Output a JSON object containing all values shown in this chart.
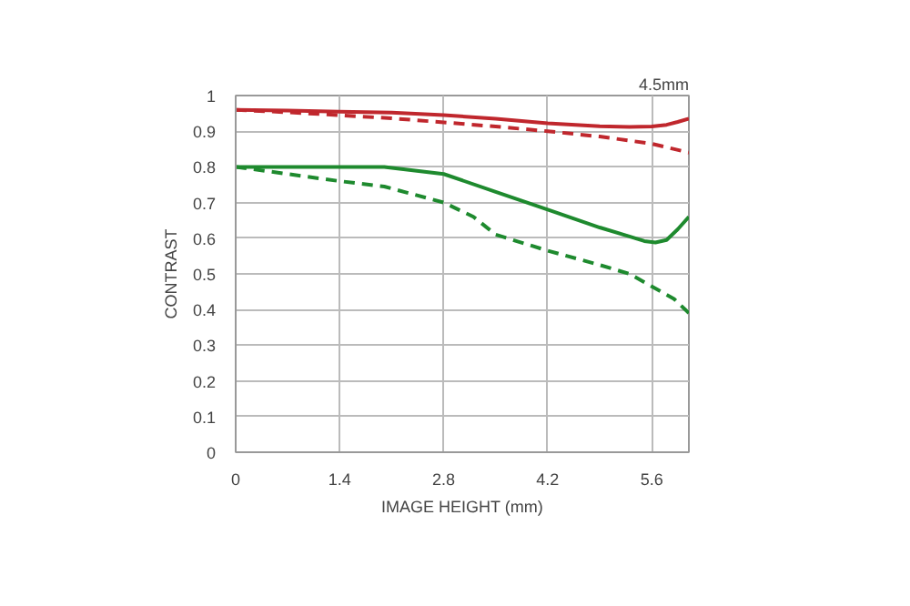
{
  "chart_data": {
    "type": "line",
    "xlabel": "IMAGE HEIGHT (mm)",
    "ylabel": "CONTRAST",
    "annotations": [
      "4.5mm"
    ],
    "xlim": [
      0,
      6.1
    ],
    "ylim": [
      0,
      1
    ],
    "xticks": [
      0,
      1.4,
      2.8,
      4.2,
      5.6
    ],
    "yticks": [
      0,
      0.1,
      0.2,
      0.3,
      0.4,
      0.5,
      0.6,
      0.7,
      0.8,
      0.9,
      1
    ],
    "grid": true,
    "series": [
      {
        "color": "#c0272d",
        "line_style": "solid",
        "x": [
          0,
          0.7,
          1.4,
          2.1,
          2.8,
          3.5,
          4.2,
          4.9,
          5.3,
          5.6,
          5.8,
          5.95,
          6.1
        ],
        "values": [
          0.96,
          0.958,
          0.955,
          0.952,
          0.945,
          0.935,
          0.922,
          0.914,
          0.912,
          0.913,
          0.918,
          0.926,
          0.935
        ]
      },
      {
        "color": "#c0272d",
        "line_style": "dashed",
        "x": [
          0,
          0.7,
          1.4,
          2.1,
          2.8,
          3.5,
          4.2,
          4.9,
          5.6,
          6.1
        ],
        "values": [
          0.96,
          0.953,
          0.945,
          0.936,
          0.925,
          0.913,
          0.9,
          0.885,
          0.865,
          0.84
        ]
      },
      {
        "color": "#1e8a2e",
        "line_style": "solid",
        "x": [
          0,
          0.7,
          1.4,
          2.0,
          2.8,
          3.5,
          4.2,
          4.9,
          5.3,
          5.5,
          5.65,
          5.8,
          5.95,
          6.1
        ],
        "values": [
          0.8,
          0.8,
          0.8,
          0.8,
          0.78,
          0.73,
          0.68,
          0.63,
          0.605,
          0.592,
          0.588,
          0.595,
          0.625,
          0.66
        ]
      },
      {
        "color": "#1e8a2e",
        "line_style": "dashed",
        "x": [
          0,
          0.7,
          1.4,
          2.0,
          2.8,
          3.2,
          3.5,
          4.2,
          4.9,
          5.3,
          5.6,
          5.9,
          6.1
        ],
        "values": [
          0.8,
          0.78,
          0.76,
          0.745,
          0.7,
          0.66,
          0.61,
          0.565,
          0.525,
          0.5,
          0.465,
          0.43,
          0.39
        ]
      }
    ]
  }
}
